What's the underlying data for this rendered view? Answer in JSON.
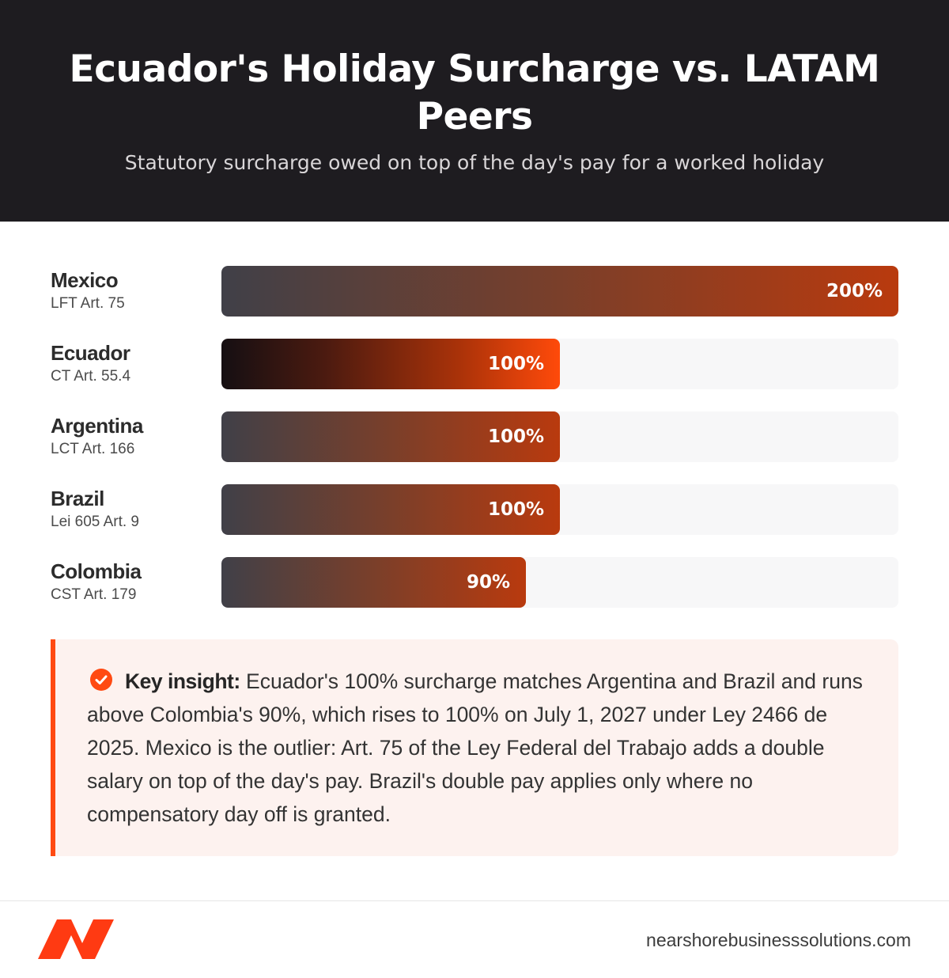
{
  "header": {
    "title": "Ecuador's Holiday Surcharge vs. LATAM Peers",
    "subtitle": "Statutory surcharge owed on top of the day's pay for a worked holiday"
  },
  "chart_data": {
    "type": "bar",
    "orientation": "horizontal",
    "title": "Ecuador's Holiday Surcharge vs. LATAM Peers",
    "subtitle": "Statutory surcharge owed on top of the day's pay for a worked holiday",
    "categories": [
      "Mexico",
      "Ecuador",
      "Argentina",
      "Brazil",
      "Colombia"
    ],
    "sublabels": [
      "LFT Art. 75",
      "CT Art. 55.4",
      "LCT Art. 166",
      "Lei 605 Art. 9",
      "CST Art. 179"
    ],
    "values": [
      200,
      100,
      100,
      100,
      90
    ],
    "value_labels": [
      "200%",
      "100%",
      "100%",
      "100%",
      "90%"
    ],
    "unit": "%",
    "xlim": [
      0,
      200
    ],
    "highlight": "Ecuador",
    "grid": false,
    "colors": {
      "bar_start": "#404048",
      "bar_end": "#b93a0e",
      "highlight_end": "#ff4a0a",
      "track": "#f7f7f8"
    }
  },
  "insight": {
    "icon": "check-circle-icon",
    "label": "Key insight:",
    "text": "Ecuador's 100% surcharge matches Argentina and Brazil and runs above Colombia's 90%, which rises to 100% on July 1, 2027 under Ley 2466 de 2025. Mexico is the outlier: Art. 75 of the Ley Federal del Trabajo adds a double salary on top of the day's pay. Brazil's double pay applies only where no compensatory day off is granted."
  },
  "footer": {
    "logo_icon": "brand-logo-icon",
    "site": "nearshorebusinesssolutions.com"
  },
  "colors": {
    "accent": "#ff4a12",
    "header_bg": "#1e1c20",
    "insight_bg": "#fdf2ef"
  }
}
